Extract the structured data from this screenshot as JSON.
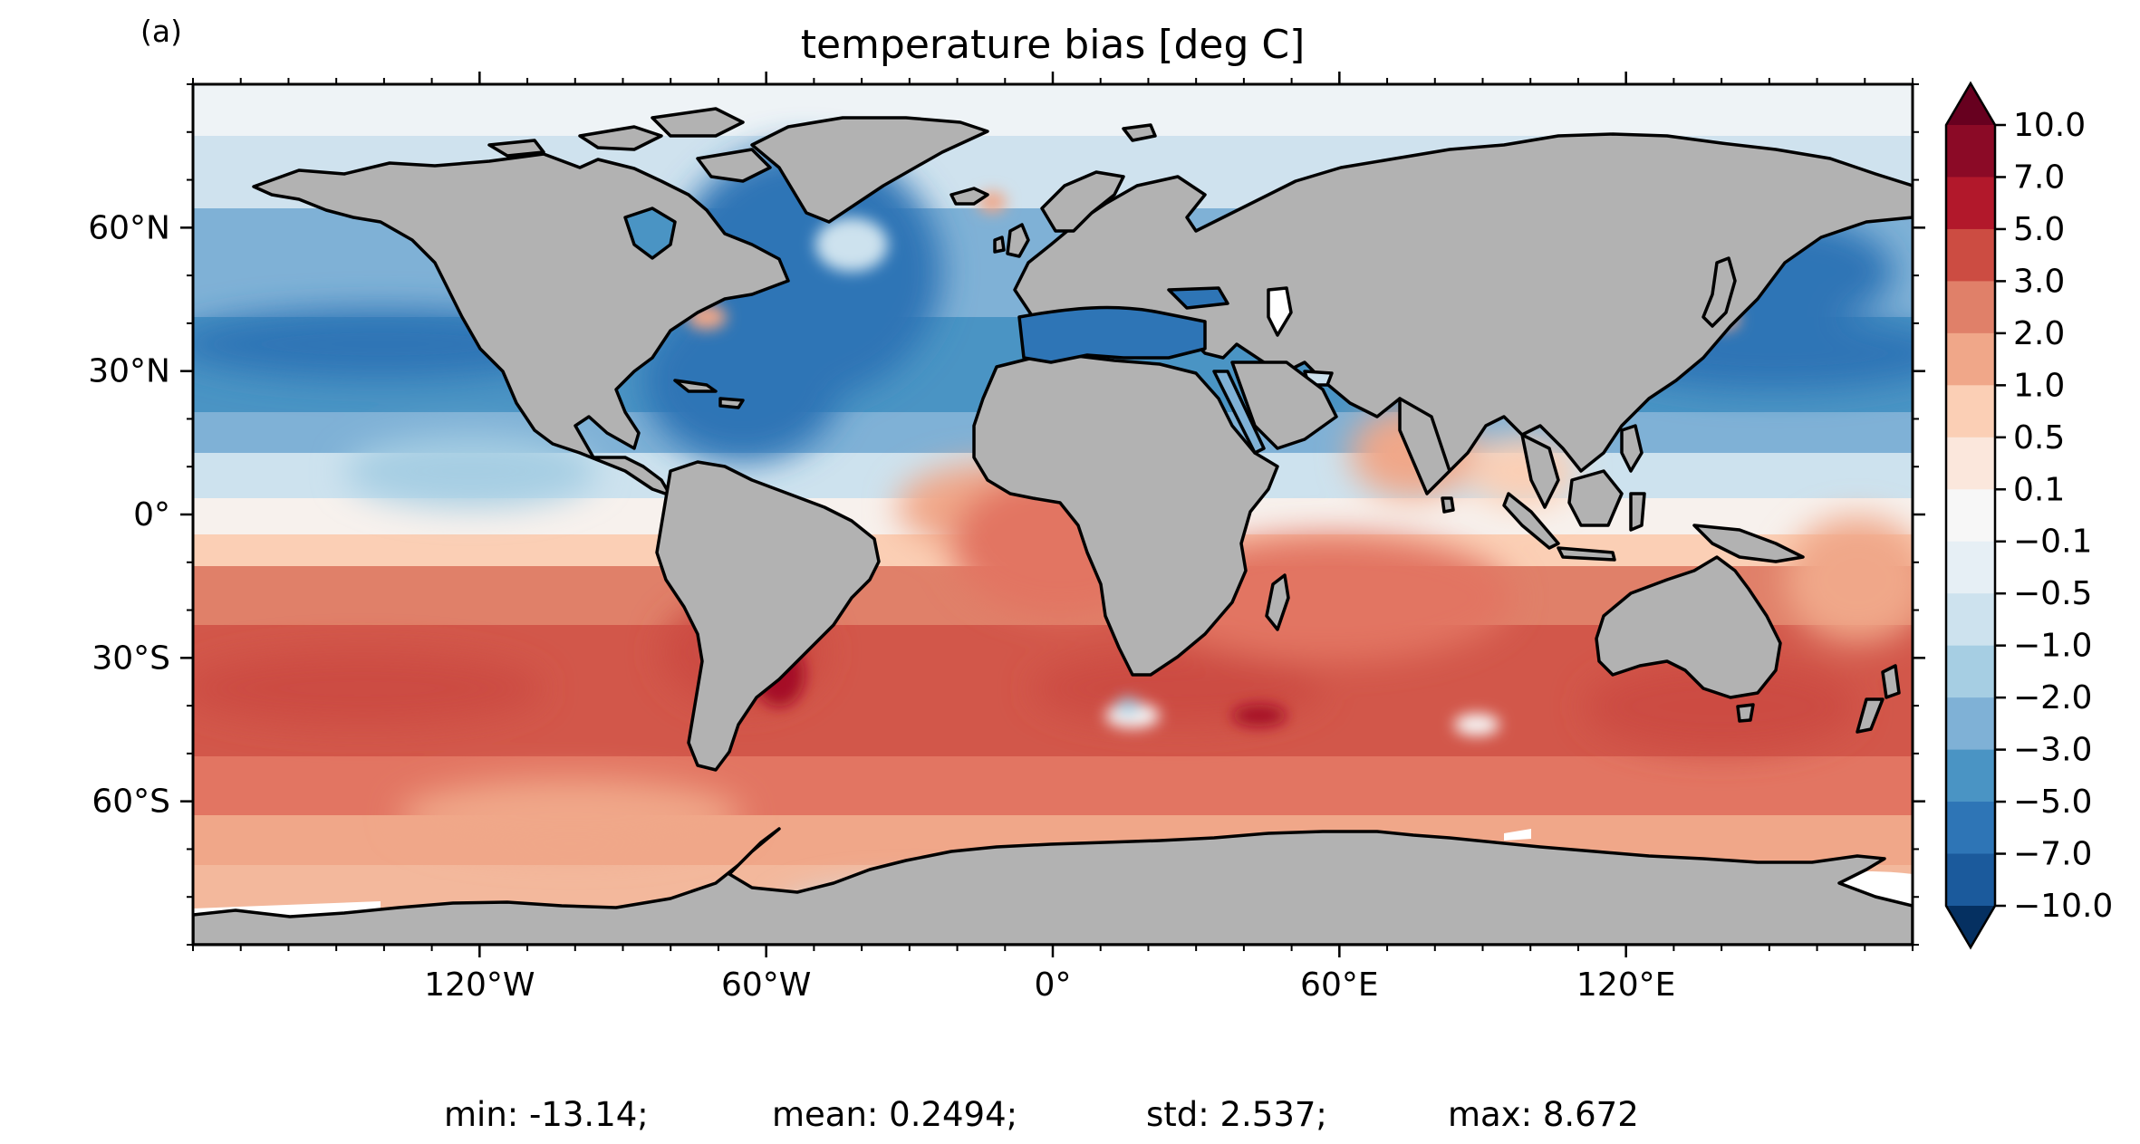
{
  "panel_label": "(a)",
  "title": "temperature bias [deg C]",
  "projection": "PlateCarree",
  "extent": {
    "lon": [
      -180,
      180
    ],
    "lat": [
      -90,
      90
    ]
  },
  "axes": {
    "x_ticks": [
      {
        "value": -120,
        "label": "120°W"
      },
      {
        "value": -60,
        "label": "60°W"
      },
      {
        "value": 0,
        "label": "0°"
      },
      {
        "value": 60,
        "label": "60°E"
      },
      {
        "value": 120,
        "label": "120°E"
      }
    ],
    "y_ticks": [
      {
        "value": 60,
        "label": "60°N"
      },
      {
        "value": 30,
        "label": "30°N"
      },
      {
        "value": 0,
        "label": "0°"
      },
      {
        "value": -30,
        "label": "30°S"
      },
      {
        "value": -60,
        "label": "60°S"
      }
    ],
    "minor_tick_step_deg": 10
  },
  "colorbar": {
    "extend": "both",
    "labels": [
      "10.0",
      "7.0",
      "5.0",
      "3.0",
      "2.0",
      "1.0",
      "0.5",
      "0.1",
      "−0.1",
      "−0.5",
      "−1.0",
      "−2.0",
      "−3.0",
      "−5.0",
      "−7.0",
      "−10.0"
    ],
    "colors": [
      "#8b0a26",
      "#b2182b",
      "#cc4c42",
      "#e08069",
      "#f0a789",
      "#fbcfb5",
      "#fbe7dc",
      "#f7f7f7",
      "#e6eff5",
      "#cde2ee",
      "#a6cee3",
      "#7fb1d6",
      "#4a94c4",
      "#2e75b6",
      "#1b5a9c"
    ],
    "over_color": "#67001f",
    "under_color": "#053061"
  },
  "colors": {
    "land": "#b2b2b2",
    "coast": "#000000",
    "ice": "#ffffff"
  },
  "stats": {
    "min": "min: -13.14;",
    "mean": "mean: 0.2494;",
    "std": "std: 2.537;",
    "max": "max: 8.672"
  }
}
